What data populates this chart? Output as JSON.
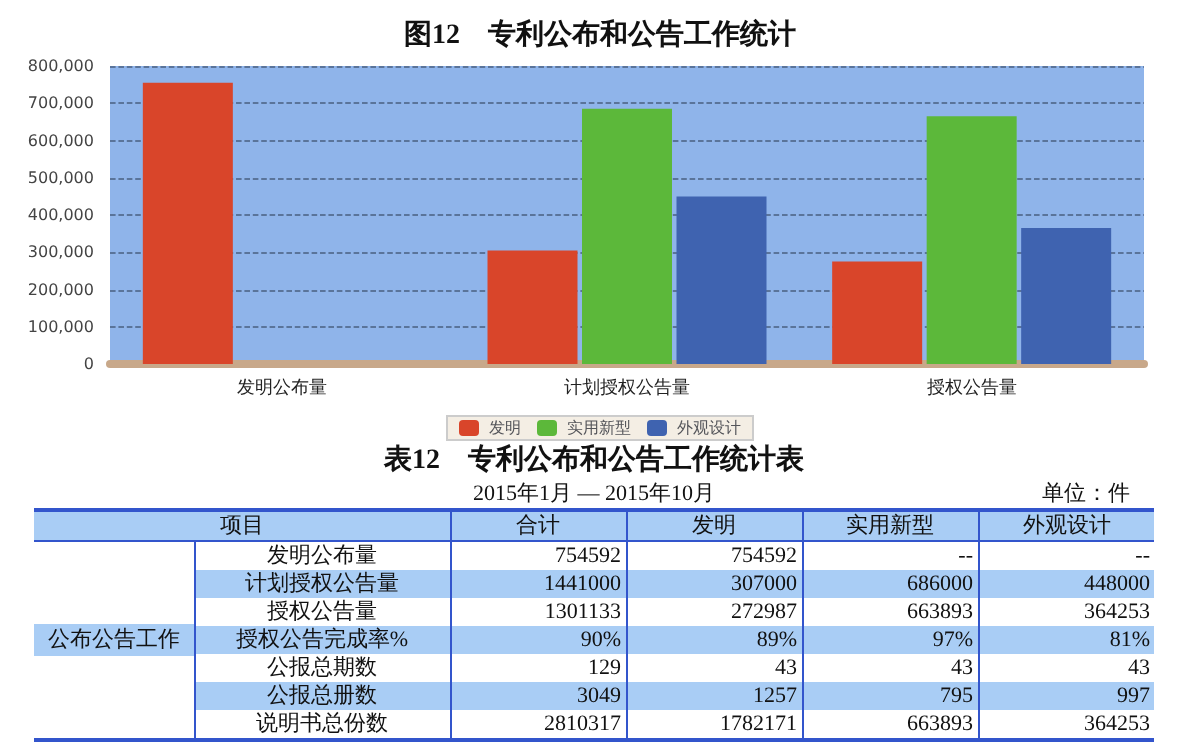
{
  "chart_data": [
    {
      "type": "bar",
      "title": "图12　专利公布和公告工作统计",
      "categories": [
        "发明公布量",
        "计划授权公告量",
        "授权公告量"
      ],
      "series": [
        {
          "name": "发明",
          "color": "#d9452a",
          "values": [
            755000,
            305000,
            275000
          ]
        },
        {
          "name": "实用新型",
          "color": "#5cb83a",
          "values": [
            null,
            685000,
            665000
          ]
        },
        {
          "name": "外观设计",
          "color": "#3f63b0",
          "values": [
            null,
            450000,
            365000
          ]
        }
      ],
      "ylim": [
        0,
        800000
      ],
      "yticks": [
        {
          "value": 0,
          "label": "0"
        },
        {
          "value": 100000,
          "label": "100,000"
        },
        {
          "value": 200000,
          "label": "200,000"
        },
        {
          "value": 300000,
          "label": "300,000"
        },
        {
          "value": 400000,
          "label": "400,000"
        },
        {
          "value": 500000,
          "label": "500,000"
        },
        {
          "value": 600000,
          "label": "600,000"
        },
        {
          "value": 700000,
          "label": "700,000"
        },
        {
          "value": 800000,
          "label": "800,000"
        }
      ],
      "grid": "y",
      "legend": "bottom"
    },
    {
      "type": "other",
      "title": "表12　专利公布和公告工作统计表",
      "subtitle": "2015年1月 — 2015年10月",
      "annotations": [
        "单位：件",
        "项目",
        "公布公告工作"
      ],
      "categories": [
        "合计",
        "发明",
        "实用新型",
        "外观设计"
      ],
      "y_categories": [
        "发明公布量",
        "计划授权公告量",
        "授权公告量",
        "授权公告完成率%",
        "公报总期数",
        "公报总册数",
        "说明书总份数"
      ],
      "cell_labels": [
        [
          "754592",
          "754592",
          "--",
          "--"
        ],
        [
          "1441000",
          "307000",
          "686000",
          "448000"
        ],
        [
          "1301133",
          "272987",
          "663893",
          "364253"
        ],
        [
          "90%",
          "89%",
          "97%",
          "81%"
        ],
        [
          "129",
          "43",
          "43",
          "43"
        ],
        [
          "3049",
          "1257",
          "795",
          "997"
        ],
        [
          "2810317",
          "1782171",
          "663893",
          "364253"
        ]
      ]
    }
  ]
}
